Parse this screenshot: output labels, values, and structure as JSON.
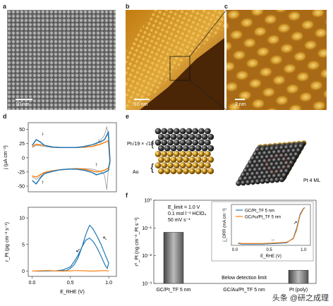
{
  "panels": {
    "a": {
      "label": "a",
      "scalebar": "10 nm"
    },
    "b": {
      "label": "b",
      "scalebar": "10 nm"
    },
    "c": {
      "label": "c",
      "scalebar": "2 nm"
    },
    "d": {
      "label": "d"
    },
    "e": {
      "label": "e",
      "left_top_label": "Pt√19 × √19",
      "left_bottom_label": "Au",
      "right_label": "Pt 4 ML"
    },
    "f": {
      "label": "f"
    }
  },
  "chart_data": [
    {
      "type": "line",
      "panel": "d-top",
      "ylabel": "j (μA cm⁻²)",
      "yticks": [
        50,
        25,
        0,
        -25,
        -50
      ],
      "ylim": [
        -60,
        62
      ],
      "xlim": [
        0,
        1.1
      ],
      "series": [
        {
          "color": "#1f77b4",
          "x": [
            0.05,
            0.1,
            0.15,
            0.2,
            0.3,
            0.4,
            0.5,
            0.6,
            0.7,
            0.8,
            0.85,
            0.9,
            0.95,
            1.0,
            1.02,
            1.0,
            0.95,
            0.9,
            0.85,
            0.8,
            0.7,
            0.6,
            0.5,
            0.4,
            0.3,
            0.2,
            0.15,
            0.1,
            0.05
          ],
          "y": [
            22,
            32,
            28,
            22,
            19,
            18,
            18,
            18,
            20,
            23,
            26,
            28,
            32,
            45,
            -5,
            -22,
            -26,
            -28,
            -30,
            -26,
            -22,
            -20,
            -20,
            -21,
            -24,
            -28,
            -36,
            -46,
            -40
          ]
        },
        {
          "color": "#ff7f0e",
          "x": [
            0.05,
            0.1,
            0.2,
            0.3,
            0.4,
            0.5,
            0.6,
            0.7,
            0.8,
            0.85,
            0.9,
            0.95,
            1.0,
            1.02,
            1.0,
            0.95,
            0.9,
            0.85,
            0.8,
            0.7,
            0.6,
            0.5,
            0.4,
            0.3,
            0.2,
            0.1,
            0.05
          ],
          "y": [
            20,
            24,
            22,
            19,
            18,
            18,
            18,
            19,
            20,
            22,
            24,
            27,
            30,
            -8,
            -18,
            -22,
            -24,
            -25,
            -23,
            -20,
            -19,
            -20,
            -21,
            -23,
            -26,
            -34,
            -32
          ]
        },
        {
          "color": "#888888",
          "x": [
            0.05,
            0.1,
            0.2,
            0.3,
            0.4,
            0.5,
            0.6,
            0.7,
            0.8,
            0.85,
            0.9,
            0.95,
            0.98,
            1.0,
            1.02,
            1.0,
            0.98,
            0.95,
            0.9,
            0.85,
            0.8,
            0.7,
            0.6,
            0.5,
            0.4,
            0.3,
            0.2,
            0.1,
            0.05
          ],
          "y": [
            18,
            22,
            20,
            18,
            18,
            18,
            18,
            18,
            20,
            24,
            30,
            40,
            55,
            35,
            -10,
            -20,
            -56,
            -30,
            -24,
            -22,
            -20,
            -19,
            -19,
            -20,
            -21,
            -24,
            -28,
            -38,
            -34
          ]
        }
      ]
    },
    {
      "type": "line",
      "panel": "d-bottom",
      "ylabel": "r_Pt (pg cm⁻² s⁻¹)",
      "xlabel": "E_RHE (V)",
      "xticks": [
        0.0,
        0.5,
        1.0
      ],
      "yticks": [
        10,
        5,
        0
      ],
      "xlim": [
        -0.05,
        1.1
      ],
      "ylim": [
        -1,
        12
      ],
      "series": [
        {
          "color": "#1f77b4",
          "x": [
            0.05,
            0.3,
            0.45,
            0.5,
            0.55,
            0.6,
            0.65,
            0.7,
            0.72,
            0.75,
            0.78,
            0.8,
            0.85,
            0.9,
            0.95,
            1.0,
            0.98,
            0.95,
            0.9,
            0.85,
            0.8,
            0.75,
            0.7,
            0.65,
            0.6,
            0.55,
            0.5,
            0.4,
            0.3,
            0.1,
            0.05
          ],
          "y": [
            0,
            0.05,
            0.1,
            0.5,
            1.2,
            2.5,
            4.5,
            6.8,
            7.6,
            8.6,
            8.2,
            7.8,
            6.5,
            5,
            3.2,
            1.5,
            0.5,
            1.2,
            2.8,
            4.3,
            5.5,
            6.2,
            5.8,
            4.5,
            3,
            1.8,
            0.8,
            0.2,
            0.05,
            0,
            0
          ]
        },
        {
          "color": "#ff7f0e",
          "x": [
            0.0,
            0.2,
            0.4,
            0.6,
            0.8,
            0.95,
            1.0
          ],
          "y": [
            0,
            0.1,
            0,
            0.1,
            0,
            0.1,
            0
          ]
        }
      ]
    },
    {
      "type": "bar",
      "panel": "f",
      "categories": [
        "GC/Pt_TF 5 nm",
        "GC/Au/Pt_TF 5 nm",
        "Pt (poly)"
      ],
      "values": [
        0.07,
        null,
        0.003
      ],
      "yscale": "log",
      "ylim": [
        0.001,
        1
      ],
      "yticks": [
        "10⁰",
        "10⁻¹",
        "10⁻²",
        "10⁻³"
      ],
      "ylabel": "r⁰_Pt (ng cm⁻²_Pt s⁻¹)",
      "annotation_conditions": [
        "E_limit = 1.0 V",
        "0.1 mol l⁻¹ HClO₄",
        "50 mV s⁻¹"
      ],
      "annotation_missing": "Below detection limit"
    },
    {
      "type": "line",
      "panel": "f-inset",
      "xlabel": "E_RHE (V)",
      "ylabel": "j_ORR (mA cm⁻²)",
      "xticks": [
        0.0,
        0.5,
        1.0
      ],
      "legend": [
        "GC/Pt_TF 5 nm",
        "GC/Au/Pt_TF 5 nm"
      ],
      "series": [
        {
          "name": "GC/Pt_TF 5 nm",
          "color": "#1f77b4",
          "x": [
            0.05,
            0.1,
            0.2,
            0.4,
            0.6,
            0.75,
            0.85,
            0.9,
            0.95,
            1.0,
            1.02
          ],
          "y": [
            -5.6,
            -5.7,
            -5.7,
            -5.7,
            -5.6,
            -5.5,
            -4.8,
            -3.2,
            -1.0,
            -0.1,
            0
          ]
        },
        {
          "name": "GC/Au/Pt_TF 5 nm",
          "color": "#ff7f0e",
          "x": [
            0.05,
            0.1,
            0.2,
            0.4,
            0.6,
            0.75,
            0.85,
            0.9,
            0.95,
            1.0,
            1.02
          ],
          "y": [
            -5.5,
            -5.6,
            -5.6,
            -5.6,
            -5.5,
            -5.4,
            -4.9,
            -3.5,
            -1.2,
            -0.2,
            0
          ]
        }
      ]
    }
  ],
  "watermark": "头条 @研之成理"
}
